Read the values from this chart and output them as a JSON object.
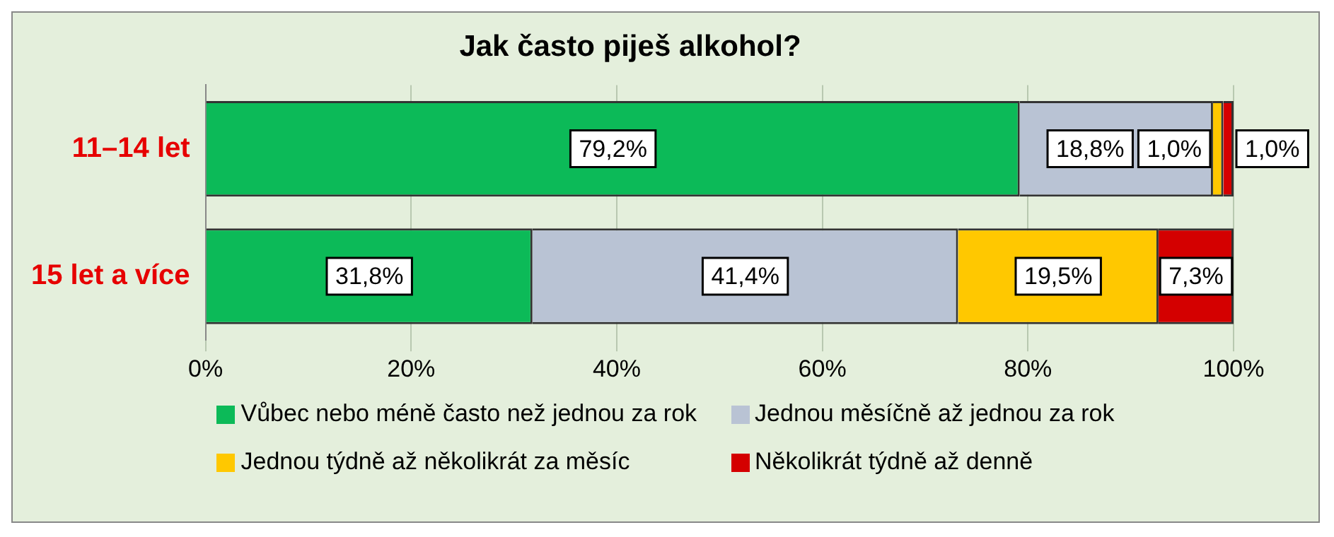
{
  "chart_data": {
    "type": "bar",
    "orientation": "horizontal",
    "stacked": true,
    "title": "Jak často piješ alkohol?",
    "categories": [
      "11–14 let",
      "15 let a více"
    ],
    "series": [
      {
        "name": "Vůbec nebo méně často než jednou za rok",
        "color": "#0cba58",
        "values": [
          79.2,
          31.8
        ],
        "value_labels": [
          "79,2%",
          "31,8%"
        ]
      },
      {
        "name": "Jednou měsíčně až jednou za rok",
        "color": "#b9c3d4",
        "values": [
          18.8,
          41.4
        ],
        "value_labels": [
          "18,8%",
          "41,4%"
        ]
      },
      {
        "name": "Jednou týdně až několikrát za měsíc",
        "color": "#ffc800",
        "values": [
          1.0,
          19.5
        ],
        "value_labels": [
          "1,0%",
          "19,5%"
        ]
      },
      {
        "name": "Několikrát týdně až denně",
        "color": "#d40000",
        "values": [
          1.0,
          7.3
        ],
        "value_labels": [
          "1,0%",
          "7,3%"
        ]
      }
    ],
    "xlim": [
      0,
      100
    ],
    "xticks": [
      {
        "value": 0,
        "label": "0%"
      },
      {
        "value": 20,
        "label": "20%"
      },
      {
        "value": 40,
        "label": "40%"
      },
      {
        "value": 60,
        "label": "60%"
      },
      {
        "value": 80,
        "label": "80%"
      },
      {
        "value": 100,
        "label": "100%"
      }
    ],
    "grid": "x",
    "legend": "bottom"
  }
}
